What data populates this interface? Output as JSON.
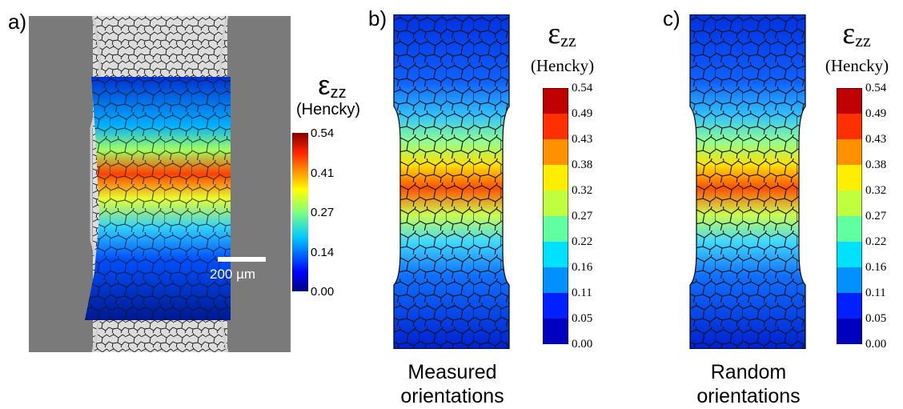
{
  "panels": {
    "a": {
      "label": "a)",
      "colorbar_symbol": "ε",
      "colorbar_subscript": "zz",
      "colorbar_unit": "(Hencky)",
      "ticks": [
        "0.54",
        "0.41",
        "0.27",
        "0.14",
        "0.00"
      ],
      "scalebar_label": "200 µm"
    },
    "b": {
      "label": "b)",
      "colorbar_symbol": "ε",
      "colorbar_subscript": "zz",
      "colorbar_unit": "(Hencky)",
      "ticks": [
        "0.54",
        "0.49",
        "0.43",
        "0.38",
        "0.32",
        "0.27",
        "0.22",
        "0.16",
        "0.11",
        "0.05",
        "0.00"
      ],
      "caption_line1": "Measured",
      "caption_line2": "orientations"
    },
    "c": {
      "label": "c)",
      "colorbar_symbol": "ε",
      "colorbar_subscript": "zz",
      "colorbar_unit": "(Hencky)",
      "ticks": [
        "0.54",
        "0.49",
        "0.43",
        "0.38",
        "0.32",
        "0.27",
        "0.22",
        "0.16",
        "0.11",
        "0.05",
        "0.00"
      ],
      "caption_line1": "Random",
      "caption_line2": "orientations"
    }
  },
  "colors": {
    "colormap": [
      "#00007f",
      "#0000ff",
      "#0080ff",
      "#00e5ff",
      "#7fff7f",
      "#ffff00",
      "#ff8000",
      "#ff0000",
      "#7f0000"
    ],
    "background_gray": "#6e6e6e",
    "grain_boundary": "#111111"
  }
}
